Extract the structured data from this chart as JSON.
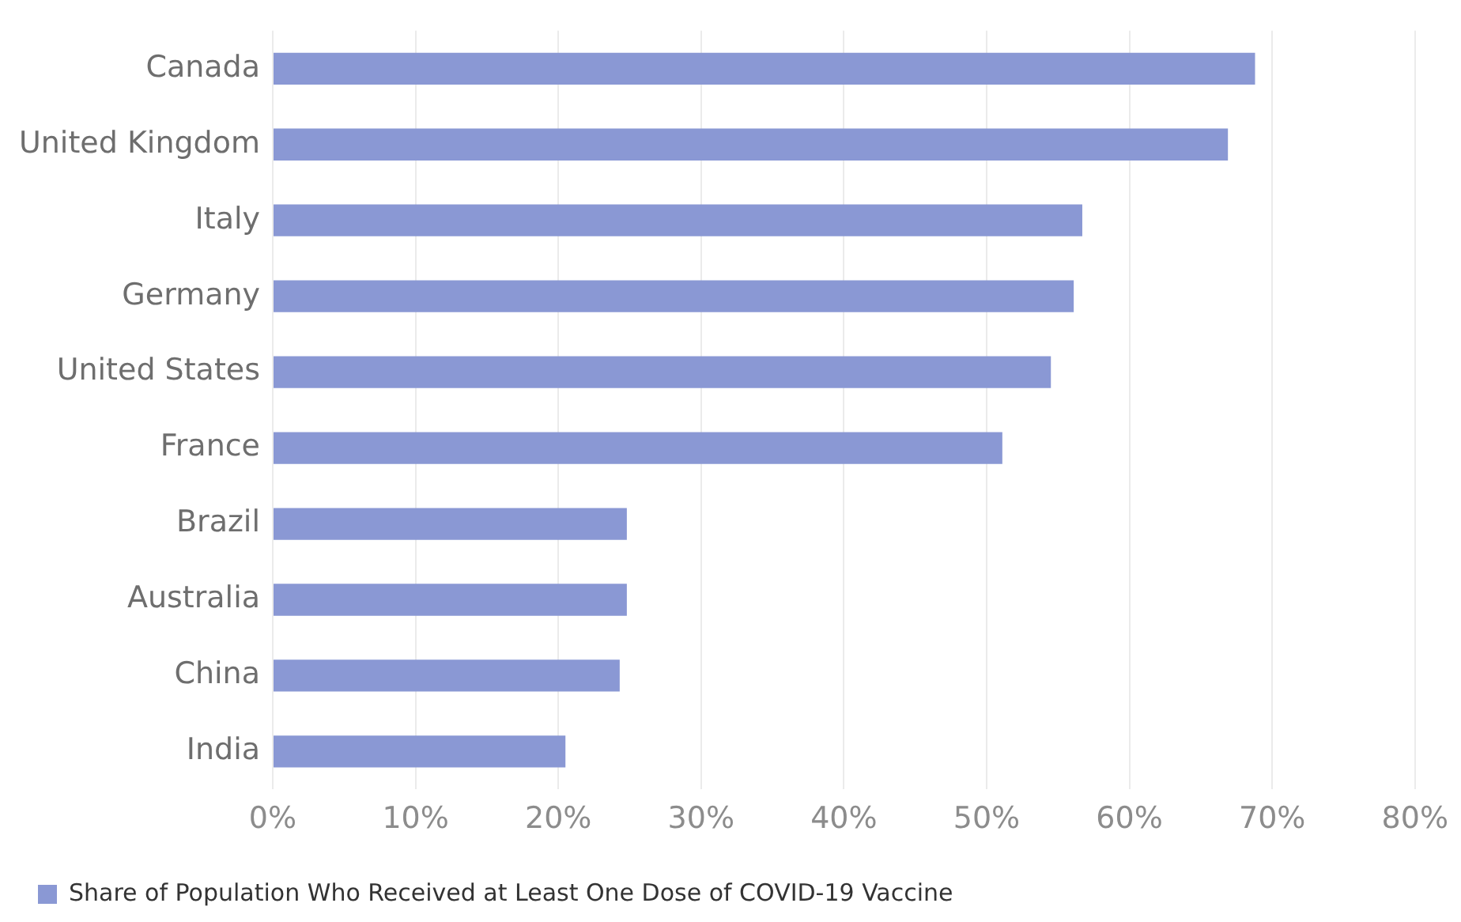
{
  "chart_data": {
    "type": "bar",
    "orientation": "horizontal",
    "categories": [
      "Canada",
      "United Kingdom",
      "Italy",
      "Germany",
      "United States",
      "France",
      "Brazil",
      "Australia",
      "China",
      "India"
    ],
    "series": [
      {
        "name": "Share of Population Who Received at Least One Dose of COVID-19 Vaccine",
        "color": "#8a98d4",
        "values": [
          68.8,
          66.9,
          56.7,
          56.1,
          54.5,
          51.1,
          24.8,
          24.8,
          24.3,
          20.5
        ]
      }
    ],
    "xlim": [
      0,
      80
    ],
    "xticks": [
      {
        "value": 0,
        "label": "0%"
      },
      {
        "value": 10,
        "label": "10%"
      },
      {
        "value": 20,
        "label": "20%"
      },
      {
        "value": 30,
        "label": "30%"
      },
      {
        "value": 40,
        "label": "40%"
      },
      {
        "value": 50,
        "label": "50%"
      },
      {
        "value": 60,
        "label": "60%"
      },
      {
        "value": 70,
        "label": "70%"
      },
      {
        "value": 80,
        "label": "80%"
      }
    ],
    "grid": "x",
    "legend": "bottom left"
  }
}
